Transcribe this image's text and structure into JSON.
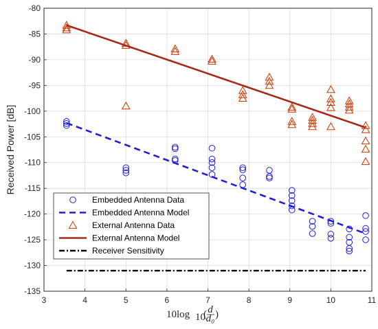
{
  "chart_data": {
    "type": "line",
    "title": "",
    "xlabel": "10log₁₀(d/d₀)",
    "xlabel_main": "10log",
    "xlabel_sub": "10",
    "xlabel_frac_num": "d",
    "xlabel_frac_den": "d₀",
    "ylabel": "Received Power [dB]",
    "xlim": [
      3,
      11
    ],
    "ylim": [
      -135,
      -80
    ],
    "xticks": [
      3,
      4,
      5,
      6,
      7,
      8,
      9,
      10,
      11
    ],
    "yticks": [
      -135,
      -130,
      -125,
      -120,
      -115,
      -110,
      -105,
      -100,
      -95,
      -90,
      -85,
      -80
    ],
    "grid": true,
    "legend_position": "bottom-left",
    "colors": {
      "embedded": "#1f1fd6",
      "external_data": "#cc3300",
      "external_model": "#a52a1a",
      "sensitivity": "#000000"
    },
    "series": [
      {
        "name": "Embedded Antenna Data",
        "kind": "scatter",
        "marker": "circle",
        "points": [
          [
            3.55,
            -102.0
          ],
          [
            3.55,
            -102.4
          ],
          [
            3.55,
            -102.8
          ],
          [
            5.0,
            -111.0
          ],
          [
            5.0,
            -111.5
          ],
          [
            5.0,
            -112.0
          ],
          [
            6.2,
            -107.0
          ],
          [
            6.2,
            -107.3
          ],
          [
            6.2,
            -109.3
          ],
          [
            6.2,
            -109.6
          ],
          [
            7.1,
            -107.2
          ],
          [
            7.1,
            -109.3
          ],
          [
            7.1,
            -110.0
          ],
          [
            7.1,
            -111.0
          ],
          [
            7.1,
            -112.3
          ],
          [
            7.85,
            -111.0
          ],
          [
            7.85,
            -111.4
          ],
          [
            7.85,
            -113.0
          ],
          [
            7.85,
            -114.3
          ],
          [
            8.5,
            -111.5
          ],
          [
            8.5,
            -112.7
          ],
          [
            8.5,
            -113.0
          ],
          [
            9.05,
            -115.4
          ],
          [
            9.05,
            -116.4
          ],
          [
            9.05,
            -117.4
          ],
          [
            9.05,
            -118.4
          ],
          [
            9.05,
            -119.2
          ],
          [
            9.55,
            -121.4
          ],
          [
            9.55,
            -122.4
          ],
          [
            9.55,
            -123.8
          ],
          [
            10.0,
            -121.4
          ],
          [
            10.0,
            -121.8
          ],
          [
            10.0,
            -123.9
          ],
          [
            10.0,
            -124.7
          ],
          [
            10.45,
            -122.9
          ],
          [
            10.45,
            -124.5
          ],
          [
            10.45,
            -125.5
          ],
          [
            10.45,
            -126.7
          ],
          [
            10.45,
            -127.2
          ],
          [
            10.85,
            -120.3
          ],
          [
            10.85,
            -122.8
          ],
          [
            10.85,
            -123.4
          ],
          [
            10.85,
            -125.0
          ]
        ]
      },
      {
        "name": "Embedded Antenna Model",
        "kind": "line",
        "style": "dashed",
        "points": [
          [
            3.55,
            -102.3
          ],
          [
            10.85,
            -123.8
          ]
        ]
      },
      {
        "name": "External Antenna Data",
        "kind": "scatter",
        "marker": "triangle",
        "points": [
          [
            3.55,
            -83.3
          ],
          [
            3.55,
            -83.8
          ],
          [
            3.55,
            -84.2
          ],
          [
            5.0,
            -86.8
          ],
          [
            5.0,
            -87.2
          ],
          [
            5.0,
            -99.0
          ],
          [
            6.2,
            -87.9
          ],
          [
            6.2,
            -88.4
          ],
          [
            7.1,
            -89.9
          ],
          [
            7.1,
            -90.3
          ],
          [
            7.85,
            -96.0
          ],
          [
            7.85,
            -96.8
          ],
          [
            7.85,
            -97.5
          ],
          [
            8.5,
            -93.4
          ],
          [
            8.5,
            -94.2
          ],
          [
            8.5,
            -95.0
          ],
          [
            9.05,
            -99.2
          ],
          [
            9.05,
            -99.6
          ],
          [
            9.05,
            -102.0
          ],
          [
            9.05,
            -102.6
          ],
          [
            9.55,
            -101.2
          ],
          [
            9.55,
            -101.8
          ],
          [
            9.55,
            -102.4
          ],
          [
            9.55,
            -103.0
          ],
          [
            10.0,
            -95.8
          ],
          [
            10.0,
            -97.6
          ],
          [
            10.0,
            -98.3
          ],
          [
            10.0,
            -99.3
          ],
          [
            10.0,
            -103.0
          ],
          [
            10.45,
            -98.0
          ],
          [
            10.45,
            -98.6
          ],
          [
            10.45,
            -99.2
          ],
          [
            10.45,
            -99.8
          ],
          [
            10.85,
            -102.8
          ],
          [
            10.85,
            -103.6
          ],
          [
            10.85,
            -105.8
          ],
          [
            10.85,
            -107.4
          ],
          [
            10.85,
            -109.8
          ]
        ]
      },
      {
        "name": "External Antenna Model",
        "kind": "line",
        "style": "solid",
        "points": [
          [
            3.55,
            -83.3
          ],
          [
            10.85,
            -103.2
          ]
        ]
      },
      {
        "name": "Receiver Sensitivity",
        "kind": "line",
        "style": "dashdot",
        "points": [
          [
            3.55,
            -131.0
          ],
          [
            10.85,
            -131.0
          ]
        ]
      }
    ]
  }
}
